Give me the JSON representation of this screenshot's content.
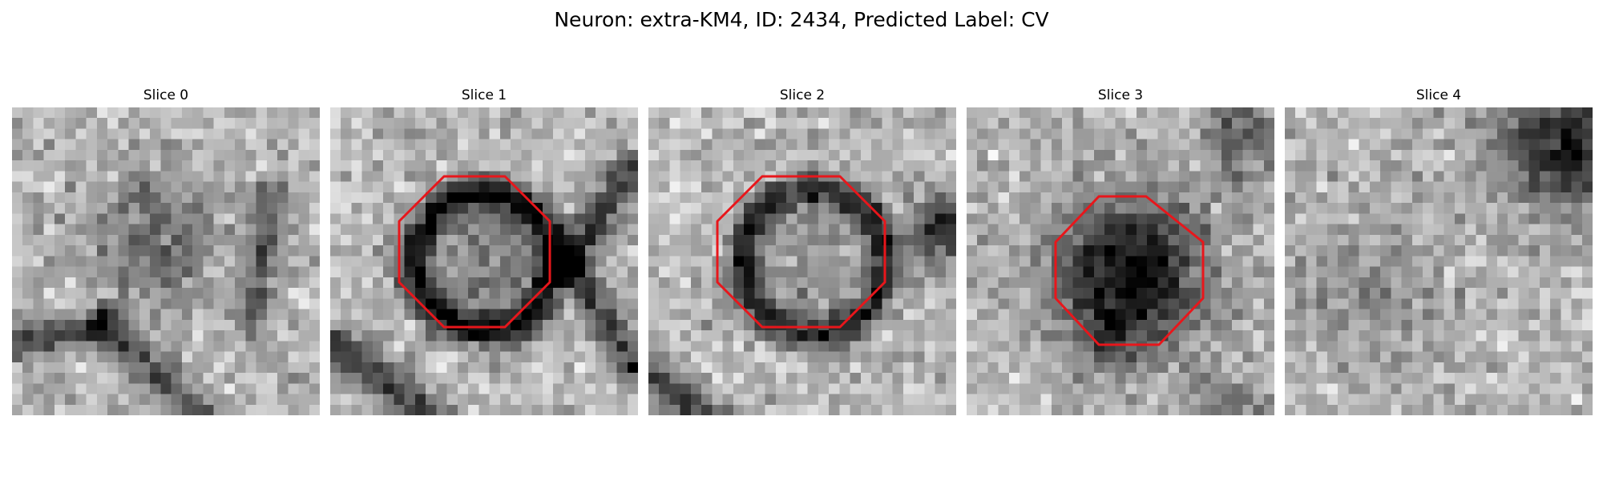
{
  "figure": {
    "title": "Neuron: extra-KM4, ID: 2434, Predicted Label: CV"
  },
  "panels": [
    {
      "title": "Slice 0",
      "has_overlay": false
    },
    {
      "title": "Slice 1",
      "has_overlay": true
    },
    {
      "title": "Slice 2",
      "has_overlay": true
    },
    {
      "title": "Slice 3",
      "has_overlay": true
    },
    {
      "title": "Slice 4",
      "has_overlay": false
    }
  ],
  "colors": {
    "overlay": "#e8161b",
    "background": "#ffffff"
  },
  "colormap": "gray"
}
